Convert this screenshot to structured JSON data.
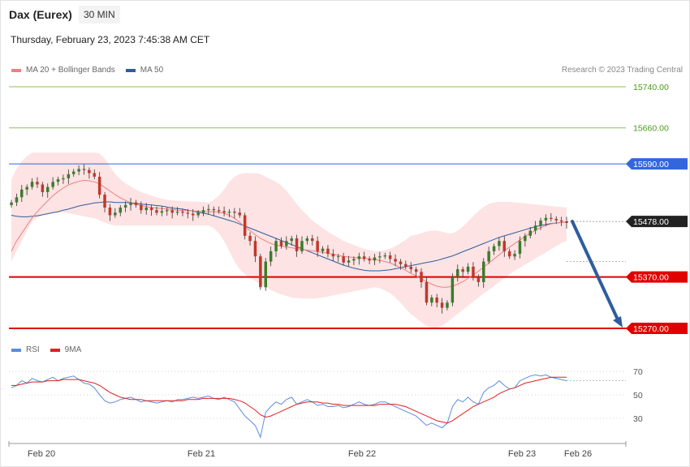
{
  "header": {
    "title": "Dax (Eurex)",
    "timeframe": "30 MIN",
    "datetime": "Thursday, February 23, 2023 7:45:38 AM CET"
  },
  "legend": {
    "ma20_label": "MA 20 + Bollinger Bands",
    "ma50_label": "MA 50",
    "rsi_label": "RSI",
    "ma9_label": "9MA"
  },
  "credit": "Research © 2023 Trading Central",
  "colors": {
    "ma20": "#f08080",
    "ma50": "#2e5d9e",
    "rsi": "#5b8de0",
    "ma9": "#e02020",
    "bollinger_fill": "#fde0e0",
    "candle_up": "#3a7d2c",
    "candle_down": "#c0392b",
    "resistance": "#3366dd",
    "support": "#e00000",
    "target_green": "#8cbf5a",
    "current": "#222222",
    "arrow": "#2e5d9e"
  },
  "chart_data": {
    "type": "candlestick",
    "x_ticks": [
      "Feb 20",
      "Feb 21",
      "Feb 22",
      "Feb 23",
      "Feb 26"
    ],
    "price_axis": {
      "ylim": [
        15220,
        15775
      ]
    },
    "levels": [
      {
        "value": 15740,
        "label": "15740.00",
        "kind": "target"
      },
      {
        "value": 15660,
        "label": "15660.00",
        "kind": "target"
      },
      {
        "value": 15590,
        "label": "15590.00",
        "kind": "resistance"
      },
      {
        "value": 15478,
        "label": "15478.00",
        "kind": "current"
      },
      {
        "value": 15370,
        "label": "15370.00",
        "kind": "support"
      },
      {
        "value": 15270,
        "label": "15270.00",
        "kind": "support"
      }
    ],
    "close": [
      15515,
      15525,
      15540,
      15545,
      15555,
      15550,
      15535,
      15545,
      15555,
      15560,
      15562,
      15570,
      15575,
      15580,
      15578,
      15572,
      15565,
      15530,
      15505,
      15490,
      15495,
      15505,
      15510,
      15515,
      15510,
      15500,
      15505,
      15500,
      15495,
      15498,
      15500,
      15495,
      15497,
      15495,
      15493,
      15490,
      15495,
      15500,
      15502,
      15500,
      15498,
      15495,
      15497,
      15495,
      15490,
      15450,
      15440,
      15410,
      15350,
      15400,
      15420,
      15440,
      15430,
      15440,
      15445,
      15420,
      15440,
      15445,
      15440,
      15420,
      15425,
      15415,
      15410,
      15410,
      15398,
      15402,
      15405,
      15410,
      15405,
      15402,
      15408,
      15410,
      15412,
      15405,
      15400,
      15395,
      15390,
      15385,
      15380,
      15360,
      15320,
      15330,
      15320,
      15310,
      15320,
      15370,
      15385,
      15380,
      15390,
      15370,
      15360,
      15400,
      15420,
      15430,
      15440,
      15420,
      15410,
      15415,
      15440,
      15450,
      15460,
      15470,
      15480,
      15485,
      15483,
      15480,
      15478,
      15475
    ],
    "ma20": [
      15420,
      15440,
      15455,
      15470,
      15485,
      15497,
      15508,
      15518,
      15528,
      15536,
      15543,
      15549,
      15553,
      15556,
      15558,
      15557,
      15555,
      15551,
      15544,
      15537,
      15530,
      15524,
      15519,
      15514,
      15511,
      15509,
      15507,
      15505,
      15504,
      15503,
      15502,
      15501,
      15500,
      15499,
      15499,
      15498,
      15498,
      15497,
      15497,
      15497,
      15496,
      15494,
      15490,
      15484,
      15476,
      15468,
      15460,
      15452,
      15445,
      15440,
      15435,
      15432,
      15430,
      15428,
      15427,
      15425,
      15424,
      15422,
      15421,
      15419,
      15418,
      15416,
      15414,
      15412,
      15410,
      15409,
      15408,
      15407,
      15406,
      15405,
      15404,
      15402,
      15400,
      15397,
      15393,
      15388,
      15383,
      15377,
      15372,
      15366,
      15361,
      15356,
      15352,
      15350,
      15350,
      15352,
      15356,
      15361,
      15367,
      15374,
      15381,
      15389,
      15397,
      15405,
      15413,
      15421,
      15428,
      15435,
      15442,
      15449,
      15455,
      15461,
      15466,
      15470,
      15473,
      15475,
      15476,
      15477
    ],
    "ma50": [
      15490,
      15488,
      15487,
      15487,
      15488,
      15489,
      15491,
      15493,
      15495,
      15497,
      15500,
      15502,
      15505,
      15508,
      15510,
      15512,
      15514,
      15515,
      15516,
      15516,
      15515,
      15515,
      15515,
      15514,
      15513,
      15512,
      15511,
      15510,
      15509,
      15508,
      15506,
      15504,
      15503,
      15502,
      15500,
      15498,
      15496,
      15494,
      15492,
      15489,
      15486,
      15483,
      15480,
      15477,
      15473,
      15469,
      15465,
      15461,
      15457,
      15453,
      15449,
      15445,
      15441,
      15437,
      15433,
      15429,
      15425,
      15421,
      15417,
      15413,
      15409,
      15405,
      15401,
      15397,
      15393,
      15390,
      15387,
      15385,
      15383,
      15382,
      15382,
      15382,
      15383,
      15384,
      15386,
      15388,
      15390,
      15392,
      15394,
      15396,
      15398,
      15400,
      15402,
      15405,
      15408,
      15411,
      15415,
      15419,
      15423,
      15427,
      15431,
      15435,
      15439,
      15443,
      15447,
      15450,
      15453,
      15456,
      15459,
      15462,
      15465,
      15468,
      15470,
      15472,
      15474,
      15475,
      15476,
      15477
    ],
    "bollinger_upper": [
      15560,
      15580,
      15595,
      15605,
      15612,
      15612,
      15612,
      15612,
      15612,
      15612,
      15612,
      15612,
      15612,
      15612,
      15612,
      15612,
      15612,
      15610,
      15600,
      15585,
      15570,
      15560,
      15552,
      15546,
      15540,
      15535,
      15532,
      15528,
      15525,
      15522,
      15520,
      15519,
      15518,
      15518,
      15517,
      15517,
      15516,
      15516,
      15515,
      15520,
      15528,
      15540,
      15555,
      15565,
      15570,
      15572,
      15572,
      15572,
      15570,
      15565,
      15560,
      15555,
      15548,
      15538,
      15525,
      15512,
      15500,
      15490,
      15480,
      15472,
      15465,
      15458,
      15452,
      15446,
      15440,
      15436,
      15432,
      15428,
      15425,
      15422,
      15420,
      15420,
      15422,
      15425,
      15430,
      15436,
      15442,
      15450,
      15452,
      15455,
      15458,
      15460,
      15460,
      15458,
      15455,
      15455,
      15460,
      15468,
      15478,
      15488,
      15498,
      15506,
      15512,
      15515,
      15516,
      15516,
      15516,
      15515,
      15514,
      15513,
      15512,
      15511,
      15510,
      15509,
      15508,
      15507,
      15506,
      15505
    ],
    "bollinger_lower": [
      15400,
      15420,
      15440,
      15460,
      15478,
      15485,
      15490,
      15492,
      15494,
      15495,
      15495,
      15494,
      15492,
      15490,
      15488,
      15486,
      15484,
      15480,
      15476,
      15472,
      15470,
      15470,
      15470,
      15470,
      15470,
      15470,
      15470,
      15470,
      15470,
      15470,
      15470,
      15470,
      15470,
      15470,
      15470,
      15470,
      15470,
      15470,
      15470,
      15465,
      15455,
      15440,
      15420,
      15400,
      15385,
      15375,
      15368,
      15362,
      15356,
      15350,
      15345,
      15340,
      15336,
      15333,
      15330,
      15329,
      15328,
      15328,
      15328,
      15329,
      15330,
      15332,
      15334,
      15336,
      15338,
      15340,
      15342,
      15344,
      15346,
      15348,
      15350,
      15348,
      15344,
      15338,
      15330,
      15320,
      15308,
      15298,
      15290,
      15282,
      15275,
      15270,
      15270,
      15275,
      15282,
      15290,
      15298,
      15306,
      15314,
      15322,
      15330,
      15338,
      15345,
      15352,
      15360,
      15368,
      15375,
      15382,
      15388,
      15394,
      15400,
      15406,
      15412,
      15418,
      15424,
      15430,
      15436,
      15440
    ],
    "rsi_axis": {
      "ylim": [
        10,
        75
      ],
      "ticks": [
        70,
        50,
        30
      ]
    },
    "rsi": [
      56,
      58,
      62,
      60,
      64,
      62,
      61,
      63,
      65,
      62,
      64,
      65,
      66,
      63,
      60,
      59,
      56,
      50,
      45,
      43,
      44,
      46,
      47,
      48,
      46,
      44,
      45,
      44,
      43,
      44,
      45,
      44,
      46,
      46,
      47,
      48,
      47,
      48,
      49,
      47,
      46,
      48,
      46,
      44,
      38,
      32,
      28,
      24,
      14,
      35,
      40,
      44,
      42,
      46,
      48,
      42,
      44,
      46,
      44,
      41,
      42,
      40,
      40,
      41,
      39,
      40,
      42,
      44,
      42,
      41,
      42,
      44,
      44,
      42,
      40,
      38,
      36,
      34,
      32,
      28,
      24,
      26,
      24,
      22,
      26,
      40,
      46,
      44,
      48,
      44,
      42,
      52,
      56,
      58,
      62,
      58,
      55,
      56,
      62,
      64,
      66,
      67,
      66,
      67,
      65,
      64,
      63,
      62
    ],
    "rsi_ma9": [
      58,
      58,
      59,
      60,
      61,
      61,
      61,
      62,
      62,
      62,
      63,
      63,
      63,
      63,
      62,
      61,
      60,
      58,
      55,
      52,
      50,
      48,
      47,
      46,
      46,
      46,
      45,
      45,
      45,
      45,
      45,
      45,
      45,
      45,
      46,
      46,
      46,
      47,
      47,
      47,
      47,
      47,
      47,
      46,
      45,
      43,
      40,
      37,
      33,
      31,
      32,
      34,
      36,
      38,
      40,
      42,
      43,
      44,
      44,
      44,
      43,
      43,
      42,
      42,
      41,
      41,
      41,
      41,
      41,
      41,
      41,
      42,
      42,
      42,
      42,
      41,
      40,
      38,
      36,
      34,
      32,
      30,
      28,
      27,
      26,
      28,
      31,
      34,
      37,
      40,
      42,
      44,
      46,
      48,
      51,
      53,
      55,
      56,
      58,
      60,
      61,
      62,
      63,
      64,
      65,
      65,
      65,
      65
    ]
  }
}
